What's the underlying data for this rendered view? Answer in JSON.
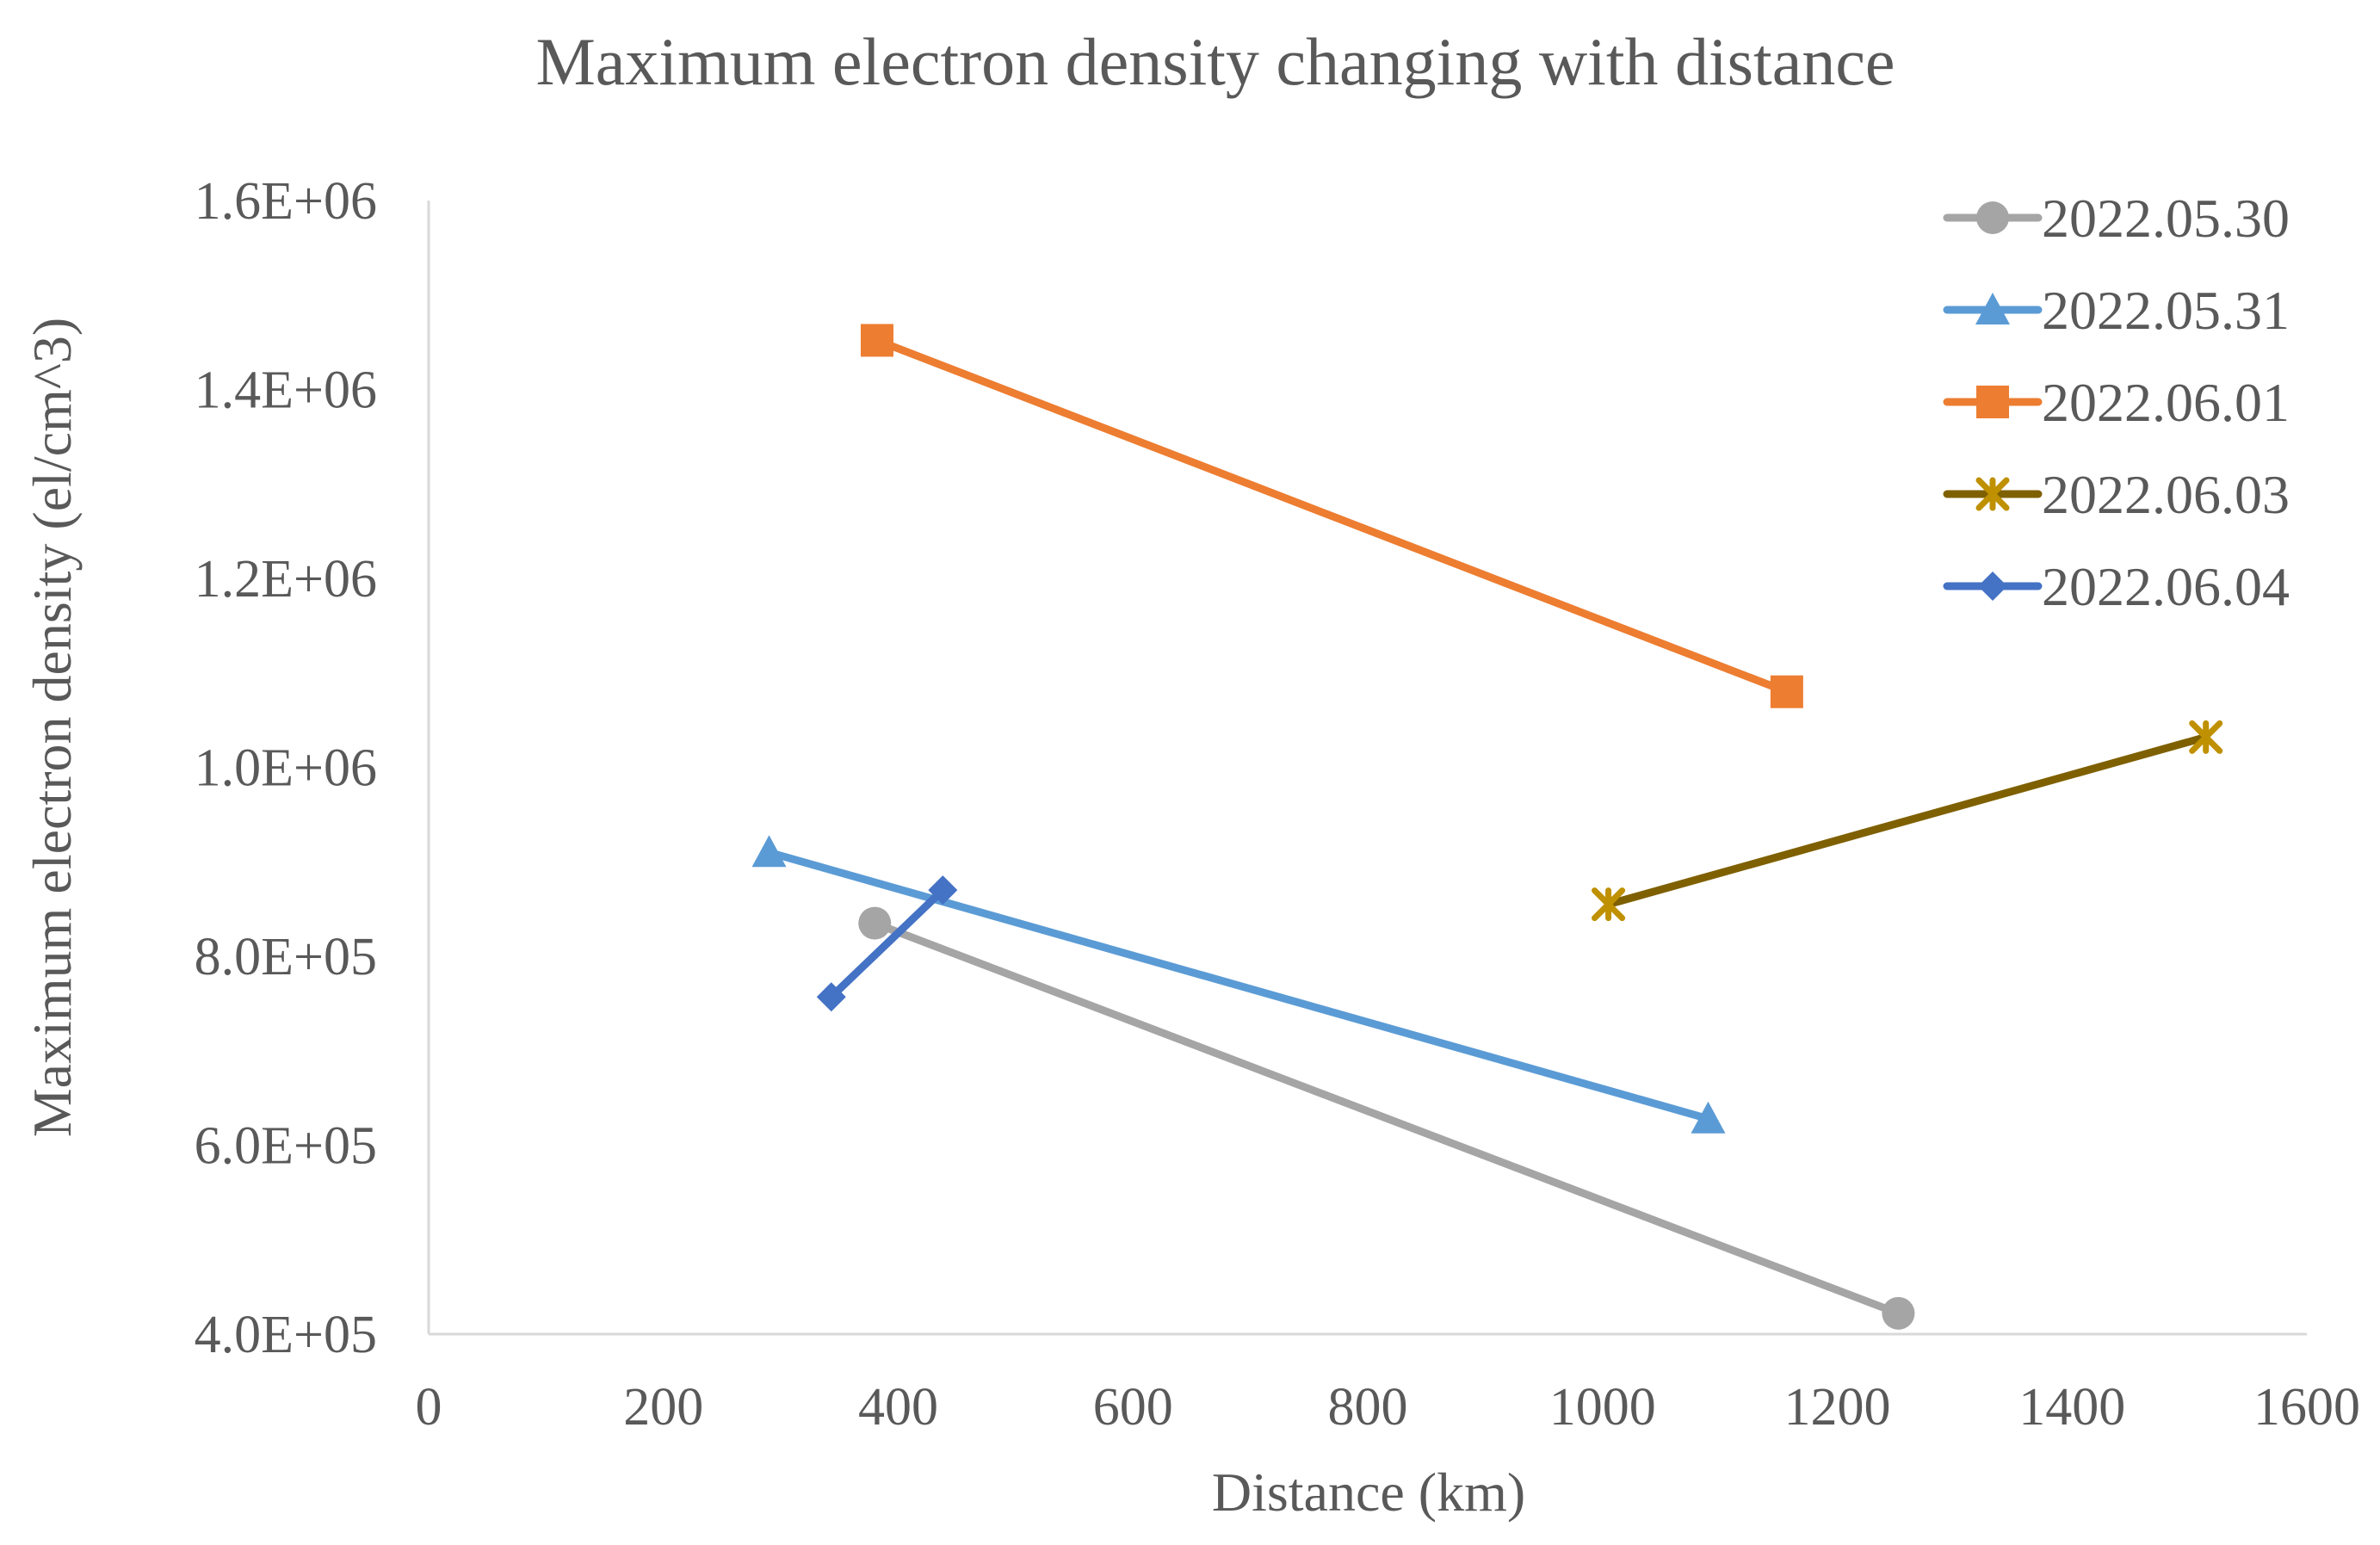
{
  "chart_data": {
    "type": "scatter",
    "title": "Maximum electron density changing with distance",
    "xlabel": "Distance (km)",
    "ylabel": "Maximum electron density (el/cm^3)",
    "xlim": [
      0,
      1600
    ],
    "ylim": [
      400000,
      1600000
    ],
    "x_ticks": [
      0,
      200,
      400,
      600,
      800,
      1000,
      1200,
      1400,
      1600
    ],
    "x_tick_labels": [
      "0",
      "200",
      "400",
      "600",
      "800",
      "1000",
      "1200",
      "1400",
      "1600"
    ],
    "y_ticks": [
      400000,
      600000,
      800000,
      1000000,
      1200000,
      1400000,
      1600000
    ],
    "y_tick_labels": [
      "4.0E+05",
      "6.0E+05",
      "8.0E+05",
      "1.0E+06",
      "1.2E+06",
      "1.4E+06",
      "1.6E+06"
    ],
    "grid": false,
    "legend_position": "top-right",
    "series": [
      {
        "name": "2022.05.30",
        "color": "#a5a5a5",
        "marker": "circle",
        "x": [
          380,
          1252
        ],
        "y": [
          835000,
          422000
        ]
      },
      {
        "name": "2022.05.31",
        "color": "#5b9bd5",
        "marker": "triangle",
        "x": [
          290,
          1090
        ],
        "y": [
          910000,
          628000
        ]
      },
      {
        "name": "2022.06.01",
        "color": "#ed7d31",
        "marker": "square",
        "x": [
          382,
          1157
        ],
        "y": [
          1452000,
          1080000
        ]
      },
      {
        "name": "2022.06.03",
        "color": "#7f6000",
        "marker_color": "#bf9000",
        "marker": "star",
        "x": [
          1005,
          1514
        ],
        "y": [
          855000,
          1032000
        ]
      },
      {
        "name": "2022.06.04",
        "color": "#4472c4",
        "marker": "diamond",
        "x": [
          343,
          438
        ],
        "y": [
          757000,
          870000
        ]
      }
    ]
  }
}
